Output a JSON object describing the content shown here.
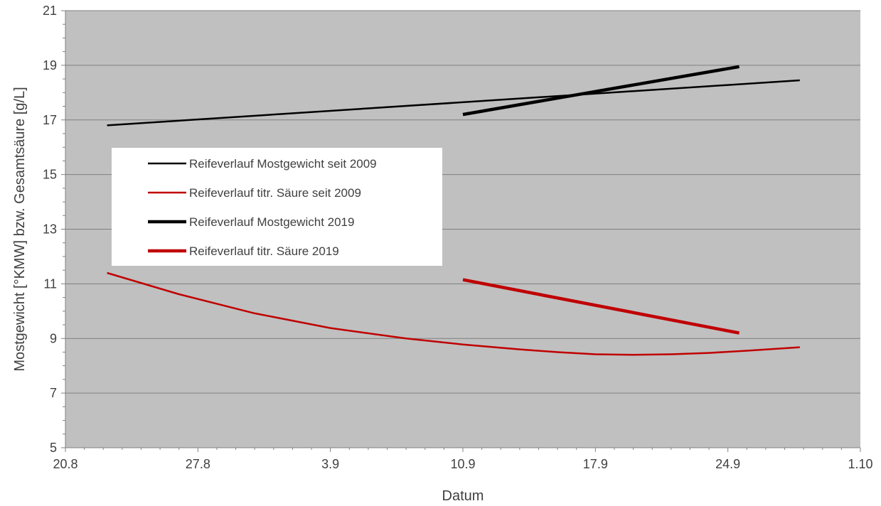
{
  "chart_data": {
    "type": "line",
    "title": "",
    "xlabel": "Datum",
    "ylabel": "Mostgewicht [°KMW] bzw. Gesamtsäure [g/L]",
    "xlim": [
      0,
      42
    ],
    "ylim": [
      5,
      21
    ],
    "x_ticks": [
      {
        "x": 0,
        "label": "20.8"
      },
      {
        "x": 7,
        "label": "27.8"
      },
      {
        "x": 14,
        "label": "3.9"
      },
      {
        "x": 21,
        "label": "10.9"
      },
      {
        "x": 28,
        "label": "17.9"
      },
      {
        "x": 35,
        "label": "24.9"
      },
      {
        "x": 42,
        "label": "1.10"
      }
    ],
    "y_ticks": [
      5,
      7,
      9,
      11,
      13,
      15,
      17,
      19,
      21
    ],
    "grid": true,
    "plot_background": "#c0c0c0",
    "legend_placement": "left",
    "series": [
      {
        "name": "Reifeverlauf Mostgewicht seit 2009",
        "color": "#000000",
        "weight": "thin",
        "x": [
          2.2,
          38.8
        ],
        "y": [
          16.8,
          18.45
        ]
      },
      {
        "name": "Reifeverlauf titr. Säure seit 2009",
        "color": "#c00000",
        "weight": "thin",
        "x": [
          2.2,
          6,
          10,
          14,
          18,
          21,
          24,
          26,
          28,
          30,
          32,
          34,
          36,
          38.8
        ],
        "y": [
          11.4,
          10.62,
          9.92,
          9.38,
          9.0,
          8.78,
          8.6,
          8.5,
          8.42,
          8.4,
          8.42,
          8.47,
          8.55,
          8.68
        ]
      },
      {
        "name": "Reifeverlauf Mostgewicht 2019",
        "color": "#000000",
        "weight": "thick",
        "x": [
          21,
          35.6
        ],
        "y": [
          17.2,
          18.95
        ]
      },
      {
        "name": "Reifeverlauf titr. Säure 2019",
        "color": "#c00000",
        "weight": "thick",
        "x": [
          21,
          35.6
        ],
        "y": [
          11.15,
          9.2
        ]
      }
    ]
  }
}
